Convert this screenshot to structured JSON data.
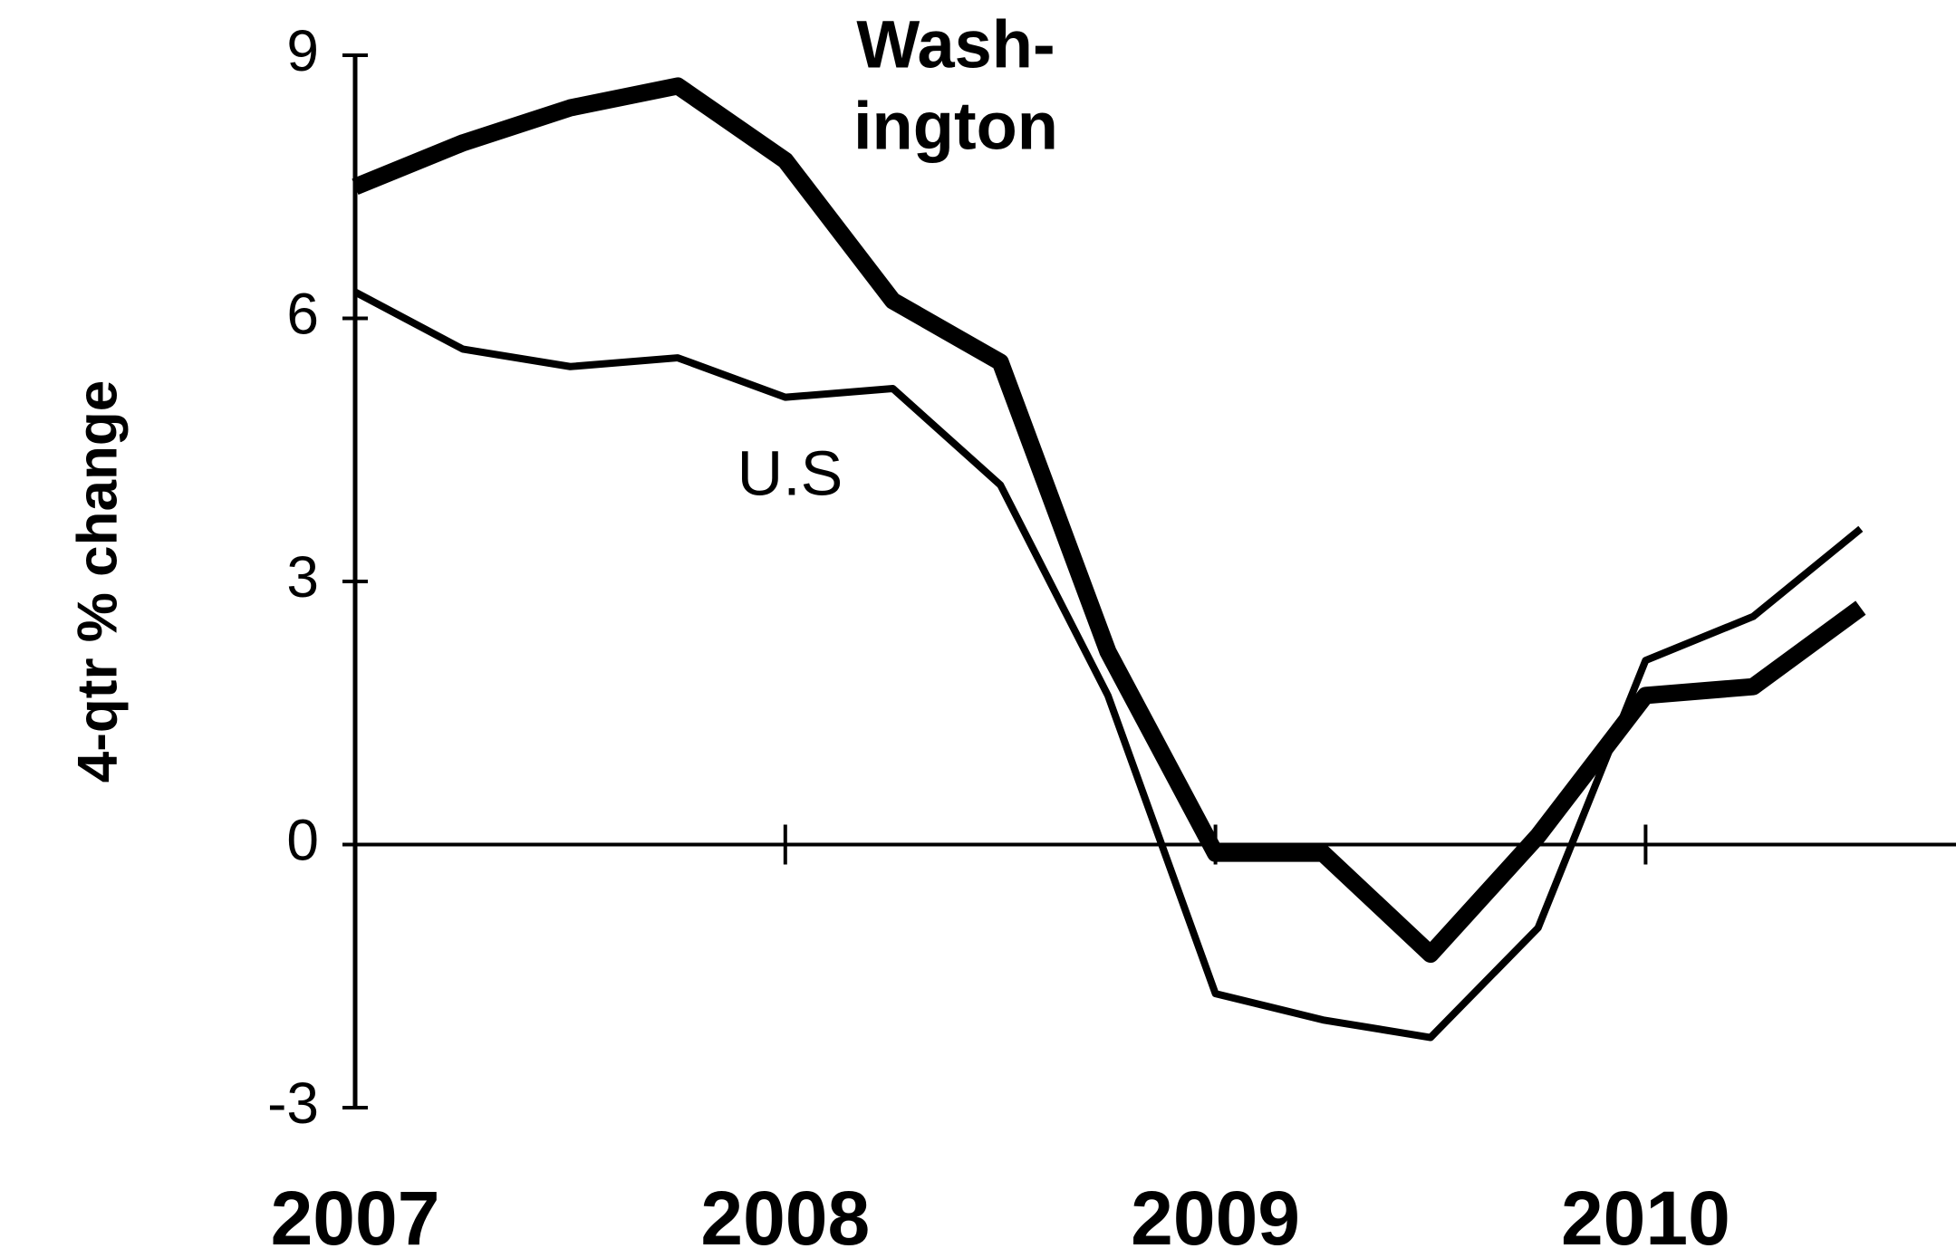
{
  "chart_data": {
    "type": "line",
    "ylabel": "4-qtr % change",
    "categories": [
      "2007",
      null,
      null,
      null,
      "2008",
      null,
      null,
      null,
      "2009",
      null,
      null,
      null,
      "2010",
      null,
      null
    ],
    "series": [
      {
        "label": [
          "Wash-",
          "ington"
        ],
        "color": "#000000",
        "width": "thick",
        "values": [
          7.5,
          8.0,
          8.4,
          8.65,
          7.8,
          6.2,
          5.5,
          2.2,
          -0.1,
          -0.1,
          -1.25,
          0.1,
          1.7,
          1.8,
          2.7
        ]
      },
      {
        "label": [
          "U.S"
        ],
        "color": "#000000",
        "width": "thin",
        "values": [
          6.3,
          5.65,
          5.45,
          5.55,
          5.1,
          5.2,
          4.1,
          1.7,
          -1.7,
          -2.0,
          -2.2,
          -0.95,
          2.1,
          2.6,
          3.6
        ]
      }
    ],
    "ylim": [
      -3,
      9
    ],
    "yticks": [
      -3,
      0,
      3,
      6,
      9
    ],
    "grid": false
  }
}
